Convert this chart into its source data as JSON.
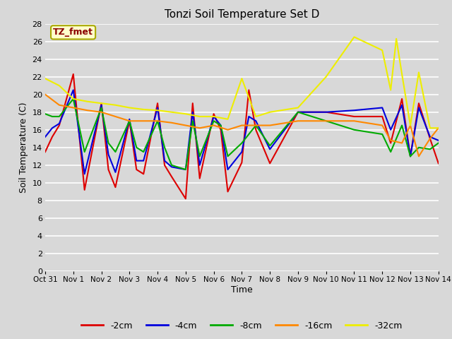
{
  "title": "Tonzi Soil Temperature Set D",
  "xlabel": "Time",
  "ylabel": "Soil Temperature (C)",
  "bg_color": "#d8d8d8",
  "plot_bg_color": "#d8d8d8",
  "ylim": [
    0,
    28
  ],
  "yticks": [
    0,
    2,
    4,
    6,
    8,
    10,
    12,
    14,
    16,
    18,
    20,
    22,
    24,
    26,
    28
  ],
  "xtick_labels": [
    "Oct 31",
    "Nov 1",
    "Nov 2",
    "Nov 3",
    "Nov 4",
    "Nov 5",
    "Nov 6",
    "Nov 7",
    "Nov 8",
    "Nov 9",
    "Nov 10",
    "Nov 11",
    "Nov 12",
    "Nov 13",
    "Nov 14"
  ],
  "annotation_label": "TZ_fmet",
  "annotation_color": "#8b0000",
  "annotation_bg": "#ffffcc",
  "annotation_edge": "#aaaa00",
  "series": {
    "-2cm": {
      "color": "#dd0000",
      "x": [
        0,
        0.25,
        0.5,
        1.0,
        1.4,
        2.0,
        2.25,
        2.5,
        3.0,
        3.25,
        3.5,
        4.0,
        4.25,
        4.5,
        5.0,
        5.25,
        5.5,
        6.0,
        6.25,
        6.5,
        7.0,
        7.25,
        7.5,
        8.0,
        9.0,
        10.0,
        11.0,
        12.0,
        12.3,
        12.7,
        13.0,
        13.3,
        13.7,
        14.0
      ],
      "y": [
        13.5,
        15.2,
        16.5,
        22.3,
        9.2,
        19.0,
        11.5,
        9.5,
        17.0,
        11.5,
        11.0,
        19.0,
        12.0,
        10.7,
        8.2,
        19.0,
        10.5,
        17.8,
        16.0,
        9.0,
        12.3,
        20.5,
        16.0,
        12.2,
        18.0,
        18.0,
        17.5,
        17.5,
        14.5,
        19.5,
        13.0,
        19.0,
        15.0,
        12.2
      ]
    },
    "-4cm": {
      "color": "#0000dd",
      "x": [
        0,
        0.25,
        0.5,
        1.0,
        1.4,
        2.0,
        2.25,
        2.5,
        3.0,
        3.25,
        3.5,
        4.0,
        4.25,
        4.5,
        5.0,
        5.25,
        5.5,
        6.0,
        6.25,
        6.5,
        7.0,
        7.25,
        7.5,
        8.0,
        9.0,
        10.0,
        11.0,
        12.0,
        12.3,
        12.7,
        13.0,
        13.3,
        13.7,
        14.0
      ],
      "y": [
        15.2,
        16.2,
        16.7,
        20.5,
        11.0,
        18.8,
        13.2,
        11.2,
        17.2,
        12.5,
        12.5,
        18.5,
        12.5,
        11.8,
        11.5,
        18.0,
        12.0,
        17.5,
        16.5,
        11.5,
        13.5,
        17.5,
        17.0,
        13.8,
        18.0,
        18.0,
        18.2,
        18.5,
        16.0,
        18.8,
        13.0,
        18.5,
        15.2,
        14.8
      ]
    },
    "-8cm": {
      "color": "#00aa00",
      "x": [
        0,
        0.25,
        0.5,
        1.0,
        1.4,
        2.0,
        2.25,
        2.5,
        3.0,
        3.25,
        3.5,
        4.0,
        4.25,
        4.5,
        5.0,
        5.25,
        5.5,
        6.0,
        6.25,
        6.5,
        7.0,
        7.25,
        7.5,
        8.0,
        9.0,
        10.0,
        11.0,
        12.0,
        12.3,
        12.7,
        13.0,
        13.3,
        13.7,
        14.0
      ],
      "y": [
        17.8,
        17.5,
        17.5,
        19.5,
        13.5,
        18.5,
        14.5,
        13.5,
        17.0,
        14.0,
        13.5,
        17.0,
        14.0,
        12.0,
        11.5,
        17.0,
        13.0,
        17.0,
        16.5,
        13.0,
        14.5,
        15.5,
        16.5,
        14.2,
        18.0,
        17.0,
        16.0,
        15.5,
        13.5,
        16.5,
        13.0,
        14.0,
        13.8,
        14.5
      ]
    },
    "-16cm": {
      "color": "#ff8800",
      "x": [
        0,
        0.5,
        1.0,
        1.5,
        2.0,
        2.5,
        3.0,
        3.5,
        4.0,
        4.5,
        5.0,
        5.5,
        6.0,
        6.5,
        7.0,
        7.5,
        8.0,
        9.0,
        10.0,
        11.0,
        12.0,
        12.3,
        12.7,
        13.0,
        13.3,
        13.7,
        14.0
      ],
      "y": [
        20.0,
        18.8,
        18.5,
        18.2,
        18.0,
        17.5,
        17.0,
        17.0,
        17.0,
        16.8,
        16.5,
        16.2,
        16.5,
        16.0,
        16.5,
        16.5,
        16.5,
        17.0,
        17.0,
        17.0,
        16.5,
        14.8,
        14.5,
        16.5,
        13.0,
        15.0,
        16.2
      ]
    },
    "-32cm": {
      "color": "#eeee00",
      "x": [
        0,
        0.5,
        1.0,
        1.5,
        2.0,
        2.5,
        3.0,
        3.5,
        4.0,
        4.5,
        5.0,
        5.5,
        6.0,
        6.5,
        7.0,
        7.5,
        8.0,
        9.0,
        10.0,
        11.0,
        12.0,
        12.3,
        12.5,
        12.7,
        13.0,
        13.3,
        13.7,
        14.0
      ],
      "y": [
        21.8,
        21.0,
        19.5,
        19.2,
        19.0,
        18.8,
        18.5,
        18.3,
        18.2,
        18.0,
        17.8,
        17.5,
        17.5,
        17.2,
        21.8,
        17.5,
        18.0,
        18.5,
        22.0,
        26.5,
        25.0,
        20.5,
        26.3,
        22.3,
        16.5,
        22.5,
        16.2,
        16.2
      ]
    }
  },
  "legend_order": [
    "-2cm",
    "-4cm",
    "-8cm",
    "-16cm",
    "-32cm"
  ]
}
